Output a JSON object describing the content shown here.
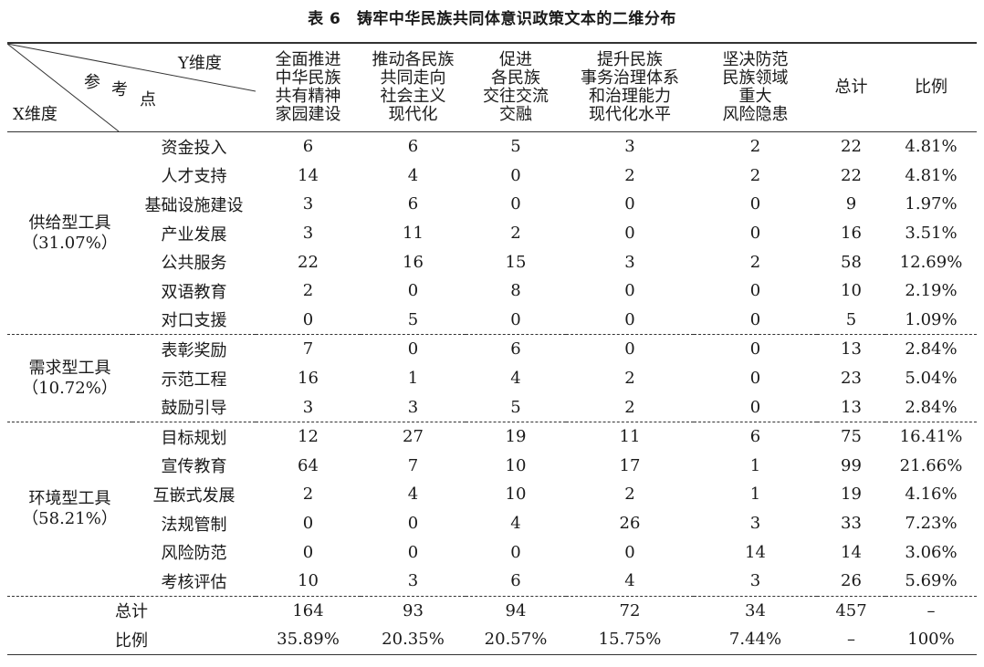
{
  "title": "表 6　铸牢中华民族共同体意识政策文本的二维分布",
  "header": {
    "corner": {
      "y": "Y维度",
      "ref1": "参",
      "ref2": "考",
      "ref3": "点",
      "x": "X维度"
    },
    "columns": [
      [
        "全面推进",
        "中华民族",
        "共有精神",
        "家园建设"
      ],
      [
        "推动各民族",
        "共同走向",
        "社会主义",
        "现代化"
      ],
      [
        "促进",
        "各民族",
        "交往交流",
        "交融"
      ],
      [
        "提升民族",
        "事务治理体系",
        "和治理能力",
        "现代化水平"
      ],
      [
        "坚决防范",
        "民族领域",
        "重大",
        "风险隐患"
      ]
    ],
    "total": "总计",
    "ratio": "比例"
  },
  "groups": [
    {
      "name": "供给型工具",
      "pct": "（31.07%）",
      "rows": [
        {
          "item": "资金投入",
          "values": [
            "6",
            "6",
            "5",
            "3",
            "2"
          ],
          "total": "22",
          "ratio": "4.81%"
        },
        {
          "item": "人才支持",
          "values": [
            "14",
            "4",
            "0",
            "2",
            "2"
          ],
          "total": "22",
          "ratio": "4.81%"
        },
        {
          "item": "基础设施建设",
          "values": [
            "3",
            "6",
            "0",
            "0",
            "0"
          ],
          "total": "9",
          "ratio": "1.97%"
        },
        {
          "item": "产业发展",
          "values": [
            "3",
            "11",
            "2",
            "0",
            "0"
          ],
          "total": "16",
          "ratio": "3.51%"
        },
        {
          "item": "公共服务",
          "values": [
            "22",
            "16",
            "15",
            "3",
            "2"
          ],
          "total": "58",
          "ratio": "12.69%"
        },
        {
          "item": "双语教育",
          "values": [
            "2",
            "0",
            "8",
            "0",
            "0"
          ],
          "total": "10",
          "ratio": "2.19%"
        },
        {
          "item": "对口支援",
          "values": [
            "0",
            "5",
            "0",
            "0",
            "0"
          ],
          "total": "5",
          "ratio": "1.09%"
        }
      ]
    },
    {
      "name": "需求型工具",
      "pct": "（10.72%）",
      "rows": [
        {
          "item": "表彰奖励",
          "values": [
            "7",
            "0",
            "6",
            "0",
            "0"
          ],
          "total": "13",
          "ratio": "2.84%"
        },
        {
          "item": "示范工程",
          "values": [
            "16",
            "1",
            "4",
            "2",
            "0"
          ],
          "total": "23",
          "ratio": "5.04%"
        },
        {
          "item": "鼓励引导",
          "values": [
            "3",
            "3",
            "5",
            "2",
            "0"
          ],
          "total": "13",
          "ratio": "2.84%"
        }
      ]
    },
    {
      "name": "环境型工具",
      "pct": "（58.21%）",
      "rows": [
        {
          "item": "目标规划",
          "values": [
            "12",
            "27",
            "19",
            "11",
            "6"
          ],
          "total": "75",
          "ratio": "16.41%"
        },
        {
          "item": "宣传教育",
          "values": [
            "64",
            "7",
            "10",
            "17",
            "1"
          ],
          "total": "99",
          "ratio": "21.66%"
        },
        {
          "item": "互嵌式发展",
          "values": [
            "2",
            "4",
            "10",
            "2",
            "1"
          ],
          "total": "19",
          "ratio": "4.16%"
        },
        {
          "item": "法规管制",
          "values": [
            "0",
            "0",
            "4",
            "26",
            "3"
          ],
          "total": "33",
          "ratio": "7.23%"
        },
        {
          "item": "风险防范",
          "values": [
            "0",
            "0",
            "0",
            "0",
            "14"
          ],
          "total": "14",
          "ratio": "3.06%"
        },
        {
          "item": "考核评估",
          "values": [
            "10",
            "3",
            "6",
            "4",
            "3"
          ],
          "total": "26",
          "ratio": "5.69%"
        }
      ]
    }
  ],
  "summary": [
    {
      "label": "总计",
      "values": [
        "164",
        "93",
        "94",
        "72",
        "34"
      ],
      "total": "457",
      "ratio": "–"
    },
    {
      "label": "比例",
      "values": [
        "35.89%",
        "20.35%",
        "20.57%",
        "15.75%",
        "7.44%"
      ],
      "total": "–",
      "ratio": "100%"
    }
  ]
}
